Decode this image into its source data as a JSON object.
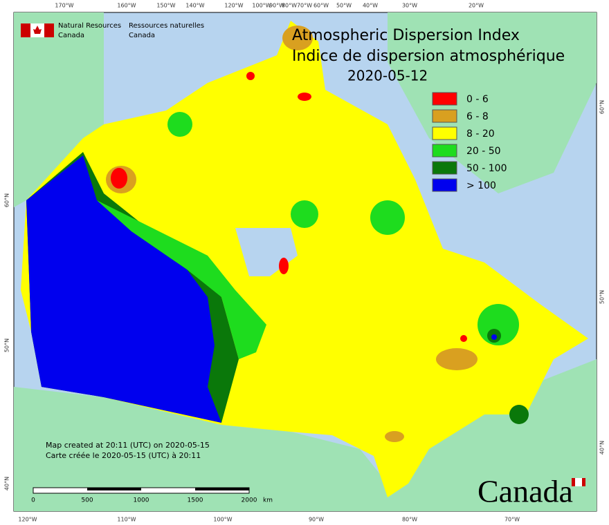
{
  "header": {
    "agency_en": [
      "Natural Resources",
      "Canada"
    ],
    "agency_fr": [
      "Ressources naturelles",
      "Canada"
    ]
  },
  "title": [
    "Atmospheric Dispersion Index",
    "Indice de dispersion atmosphérique"
  ],
  "date": "2020-05-12",
  "legend": [
    {
      "label": "0 - 6",
      "color": "#ff0000"
    },
    {
      "label": "6 - 8",
      "color": "#d9a020"
    },
    {
      "label": "8 - 20",
      "color": "#ffff00"
    },
    {
      "label": "20 - 50",
      "color": "#1edc1e"
    },
    {
      "label": "50 - 100",
      "color": "#0a780a"
    },
    {
      "label": "> 100",
      "color": "#0000ee"
    }
  ],
  "graticule": {
    "top": [
      "170°W",
      "160°W",
      "150°W",
      "140°W",
      "120°W",
      "100°W",
      "90°W",
      "80°W",
      "70°W",
      "60°W",
      "50°W",
      "40°W",
      "30°W",
      "20°W"
    ],
    "bottom": [
      "120°W",
      "110°W",
      "100°W",
      "90°W",
      "80°W",
      "70°W"
    ],
    "left": [
      "60°N",
      "50°N",
      "40°N"
    ],
    "right": [
      "60°N",
      "50°N",
      "40°N"
    ]
  },
  "footer": [
    "Map created at 20:11 (UTC) on 2020-05-15",
    "Carte créée le 2020-05-15 (UTC) à 20:11"
  ],
  "scale_bar": {
    "ticks": [
      "0",
      "500",
      "1000",
      "1500",
      "2000"
    ],
    "unit": "km"
  },
  "wordmark": "Canada"
}
